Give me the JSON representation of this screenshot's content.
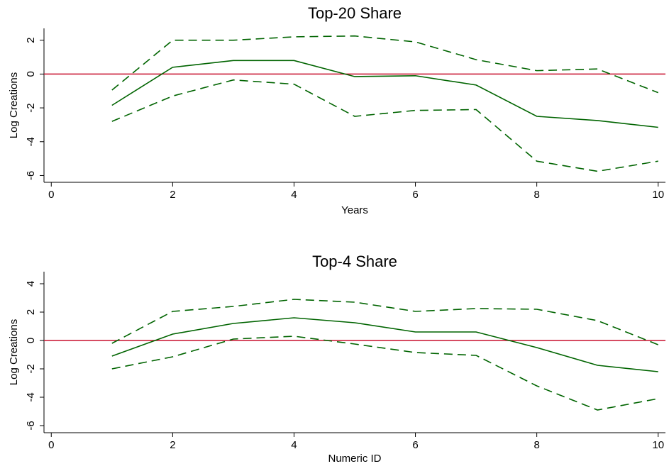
{
  "chart_data": [
    {
      "type": "line",
      "title": "Top-20 Share",
      "xlabel": "Years",
      "ylabel": "Log Creations",
      "x": [
        1,
        2,
        3,
        4,
        5,
        6,
        7,
        8,
        9,
        10
      ],
      "series": [
        {
          "color": "#006400",
          "dash": "solid",
          "values": [
            -1.85,
            0.4,
            0.8,
            0.8,
            -0.15,
            -0.1,
            -0.65,
            -2.5,
            -2.75,
            -3.15
          ]
        },
        {
          "color": "#006400",
          "dash": "dashed",
          "values": [
            -0.95,
            2.0,
            2.0,
            2.2,
            2.25,
            1.9,
            0.85,
            0.2,
            0.3,
            -1.1
          ]
        },
        {
          "color": "#006400",
          "dash": "dashed",
          "values": [
            -2.8,
            -1.3,
            -0.35,
            -0.6,
            -2.5,
            -2.15,
            -2.1,
            -5.15,
            -5.75,
            -5.15
          ]
        }
      ],
      "hline": {
        "value": 0,
        "color": "#c8102e"
      },
      "xlim": [
        -0.12,
        10.12
      ],
      "xticks": [
        0,
        2,
        4,
        6,
        8,
        10
      ],
      "ylim": [
        -6.4,
        2.7
      ],
      "yticks": [
        -6,
        -4,
        -2,
        0,
        2
      ]
    },
    {
      "type": "line",
      "title": "Top-4 Share",
      "xlabel": "Numeric ID",
      "ylabel": "Log Creations",
      "x": [
        1,
        2,
        3,
        4,
        5,
        6,
        7,
        8,
        9,
        10
      ],
      "series": [
        {
          "color": "#006400",
          "dash": "solid",
          "values": [
            -1.1,
            0.45,
            1.2,
            1.6,
            1.25,
            0.6,
            0.6,
            -0.5,
            -1.75,
            -2.2
          ]
        },
        {
          "color": "#006400",
          "dash": "dashed",
          "values": [
            -0.2,
            2.05,
            2.4,
            2.9,
            2.7,
            2.05,
            2.25,
            2.2,
            1.4,
            -0.3
          ]
        },
        {
          "color": "#006400",
          "dash": "dashed",
          "values": [
            -2.0,
            -1.15,
            0.1,
            0.3,
            -0.25,
            -0.85,
            -1.05,
            -3.2,
            -4.9,
            -4.1
          ]
        }
      ],
      "hline": {
        "value": 0,
        "color": "#c8102e"
      },
      "xlim": [
        -0.12,
        10.12
      ],
      "xticks": [
        0,
        2,
        4,
        6,
        8,
        10
      ],
      "ylim": [
        -6.5,
        4.85
      ],
      "yticks": [
        -6,
        -4,
        -2,
        0,
        2,
        4
      ]
    }
  ]
}
